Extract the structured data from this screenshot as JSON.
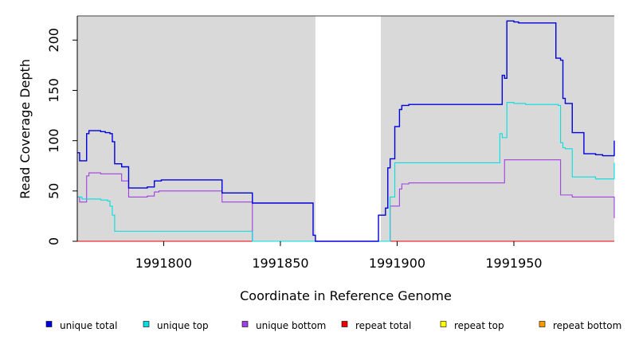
{
  "chart_data": {
    "type": "line",
    "xlabel": "Coordinate in Reference Genome",
    "ylabel": "Read Coverage Depth",
    "xlim": [
      1991763,
      1991993
    ],
    "ylim": [
      0,
      224
    ],
    "x_ticks": [
      1991800,
      1991850,
      1991900,
      1991950
    ],
    "y_ticks": [
      0,
      50,
      100,
      150,
      200
    ],
    "shaded_regions": [
      [
        1991763,
        1991865
      ],
      [
        1991893,
        1991993
      ]
    ],
    "background_color": "#d9d9d9",
    "legend_position": "bottom",
    "series": [
      {
        "name": "unique total",
        "color": "#0000dd",
        "x": [
          1991763,
          1991764,
          1991765,
          1991767,
          1991768,
          1991770,
          1991773,
          1991775,
          1991777,
          1991778,
          1991779,
          1991782,
          1991785,
          1991787,
          1991793,
          1991794,
          1991796,
          1991798,
          1991799,
          1991825,
          1991826,
          1991838,
          1991864,
          1991865,
          1991891,
          1991892,
          1991895,
          1991896,
          1991897,
          1991899,
          1991901,
          1991902,
          1991903,
          1991905,
          1991943,
          1991945,
          1991946,
          1991947,
          1991948,
          1991950,
          1991952,
          1991963,
          1991968,
          1991969,
          1991970,
          1991971,
          1991972,
          1991975,
          1991980,
          1991983,
          1991985,
          1991988,
          1991991,
          1991993
        ],
        "y": [
          88,
          80,
          80,
          107,
          110,
          110,
          109,
          108,
          107,
          99,
          77,
          74,
          53,
          53,
          54,
          54,
          60,
          60,
          61,
          48,
          48,
          38,
          6,
          0,
          0,
          26,
          33,
          73,
          82,
          114,
          131,
          135,
          135,
          136,
          136,
          165,
          162,
          219,
          219,
          218,
          217,
          217,
          182,
          182,
          180,
          142,
          137,
          108,
          87,
          87,
          86,
          85,
          85,
          100
        ]
      },
      {
        "name": "unique top",
        "color": "#00e0e0",
        "x": [
          1991763,
          1991765,
          1991767,
          1991770,
          1991773,
          1991776,
          1991777,
          1991778,
          1991779,
          1991826,
          1991838,
          1991865,
          1991896,
          1991897,
          1991899,
          1991900,
          1991943,
          1991944,
          1991945,
          1991947,
          1991948,
          1991950,
          1991955,
          1991968,
          1991969,
          1991970,
          1991971,
          1991972,
          1991975,
          1991980,
          1991985,
          1991993
        ],
        "y": [
          44,
          42,
          42,
          42,
          41,
          40,
          35,
          26,
          10,
          10,
          0,
          0,
          0,
          44,
          78,
          78,
          78,
          107,
          103,
          138,
          138,
          137,
          136,
          136,
          135,
          98,
          93,
          92,
          64,
          64,
          62,
          78
        ]
      },
      {
        "name": "unique bottom",
        "color": "#a040e0",
        "x": [
          1991763,
          1991764,
          1991765,
          1991767,
          1991768,
          1991770,
          1991773,
          1991779,
          1991782,
          1991785,
          1991787,
          1991793,
          1991794,
          1991796,
          1991798,
          1991825,
          1991826,
          1991838,
          1991865,
          1991893,
          1991897,
          1991899,
          1991901,
          1991902,
          1991905,
          1991943,
          1991946,
          1991955,
          1991963,
          1991970,
          1991975,
          1991993
        ],
        "y": [
          44,
          39,
          39,
          65,
          68,
          68,
          67,
          67,
          60,
          44,
          44,
          45,
          45,
          49,
          50,
          39,
          39,
          0,
          0,
          0,
          35,
          35,
          52,
          57,
          58,
          58,
          81,
          81,
          81,
          46,
          44,
          23
        ]
      },
      {
        "name": "repeat total",
        "color": "#ee0000",
        "x": [
          1991763,
          1991993
        ],
        "y": [
          0,
          0
        ]
      },
      {
        "name": "repeat top",
        "color": "#ffff00",
        "x": [
          1991763,
          1991993
        ],
        "y": [
          0,
          0
        ]
      },
      {
        "name": "repeat bottom",
        "color": "#ff9900",
        "x": [
          1991763,
          1991993
        ],
        "y": [
          0,
          0
        ]
      }
    ]
  }
}
